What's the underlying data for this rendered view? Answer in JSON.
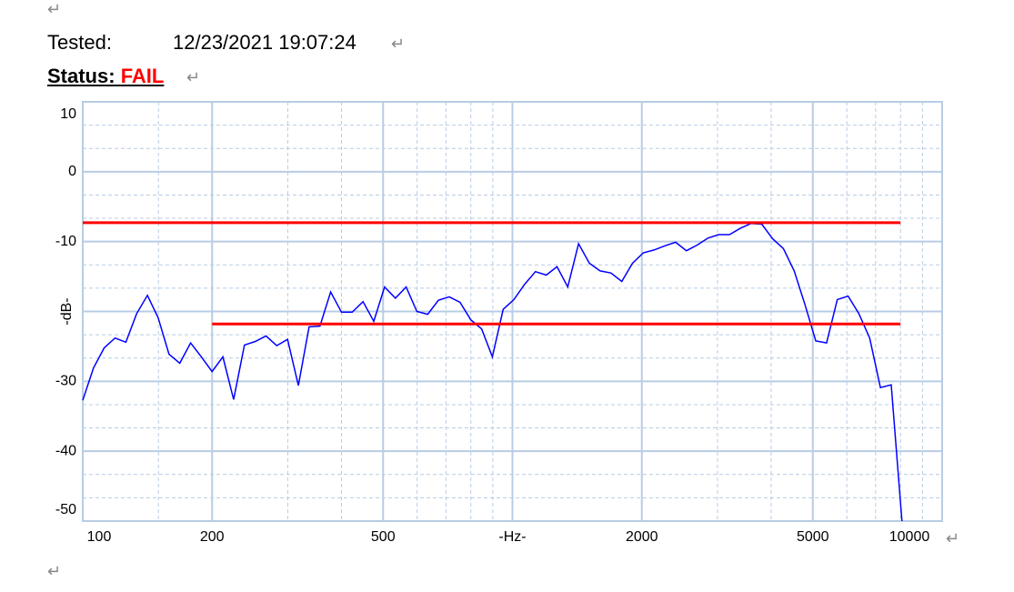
{
  "document": {
    "tested_label": "Tested:",
    "tested_value": "12/23/2021 19:07:24",
    "status_label": "Status:",
    "status_value": "FAIL",
    "paragraph_mark": "↵"
  },
  "chart_data": {
    "type": "line",
    "log_x": true,
    "grid": true,
    "xlim": [
      100,
      10000
    ],
    "ylim": [
      -50,
      10
    ],
    "xticks": [
      100,
      200,
      500,
      {
        "value": 1000,
        "label": "-Hz-"
      },
      2000,
      5000,
      10000
    ],
    "yticks": [
      10,
      0,
      -10,
      {
        "value": -20,
        "label": "-dB-"
      },
      -30,
      -40,
      -50
    ],
    "xminor": [
      150,
      300,
      400,
      600,
      700,
      800,
      900,
      3000,
      4000,
      6000,
      7000,
      8000,
      9000
    ],
    "yminor": [
      6.667,
      3.333,
      -3.333,
      -6.667,
      -13.333,
      -16.667,
      -23.333,
      -26.667,
      -33.333,
      -36.667,
      -43.333,
      -46.667
    ],
    "series": [
      {
        "color": "#0000ff",
        "x": [
          100,
          105.9,
          112.2,
          118.9,
          126,
          133.5,
          141.4,
          149.8,
          158.7,
          168.2,
          178.2,
          188.8,
          200,
          211.9,
          224.5,
          237.8,
          252,
          267,
          282.8,
          299.7,
          317.5,
          336.4,
          356.4,
          377.6,
          400,
          423.8,
          449,
          475.7,
          504,
          534,
          565.7,
          599.3,
          635,
          672.7,
          712.7,
          755.1,
          800,
          847.6,
          898,
          951.4,
          1008,
          1068,
          1131,
          1199,
          1270,
          1345,
          1425,
          1510,
          1600,
          1695,
          1796,
          1903,
          2016,
          2136,
          2263,
          2397,
          2540,
          2691,
          2851,
          3020,
          3200,
          3390,
          3592,
          3805,
          4032,
          4271,
          4525,
          4794,
          5080,
          5382,
          5702,
          6041,
          6400,
          6781,
          7184,
          7611,
          8063
        ],
        "values": [
          -32.7,
          -28.1,
          -25.2,
          -23.8,
          -24.4,
          -20.3,
          -17.7,
          -20.9,
          -26.1,
          -27.4,
          -24.5,
          -26.5,
          -28.6,
          -26.5,
          -32.6,
          -24.8,
          -24.3,
          -23.5,
          -24.9,
          -24.0,
          -30.6,
          -22.2,
          -22.1,
          -17.2,
          -20.1,
          -20.1,
          -18.6,
          -21.4,
          -16.5,
          -18.1,
          -16.5,
          -20.0,
          -20.4,
          -18.4,
          -17.9,
          -18.7,
          -21.2,
          -22.5,
          -26.5,
          -19.7,
          -18.3,
          -16.1,
          -14.3,
          -14.8,
          -13.6,
          -16.5,
          -10.3,
          -13.1,
          -14.2,
          -14.5,
          -15.7,
          -13.1,
          -11.6,
          -11.2,
          -10.6,
          -10.1,
          -11.3,
          -10.5,
          -9.5,
          -9.0,
          -9.0,
          -8.1,
          -7.4,
          -7.5,
          -9.6,
          -11.0,
          -14.2,
          -19.0,
          -24.2,
          -24.5,
          -18.3,
          -17.8,
          -20.3,
          -23.8,
          -30.9,
          -30.5,
          -50
        ]
      },
      {
        "color": "#ff0000",
        "x": [
          100,
          8000
        ],
        "values": [
          -7.3,
          -7.3
        ]
      },
      {
        "color": "#ff0000",
        "x": [
          200,
          8000
        ],
        "values": [
          -21.8,
          -21.8
        ]
      }
    ]
  }
}
